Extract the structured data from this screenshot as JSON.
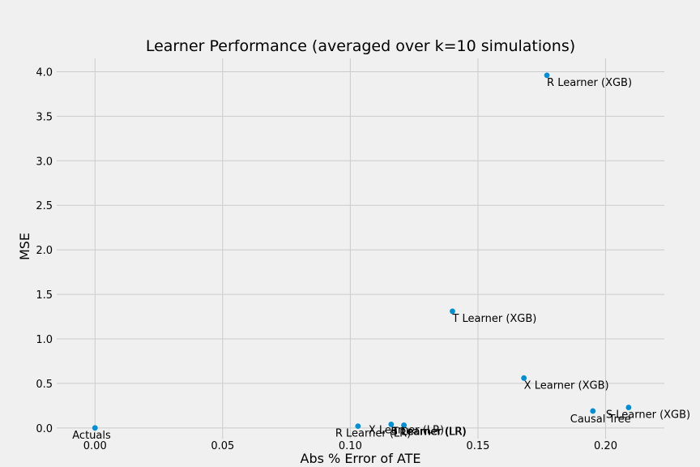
{
  "chart_data": {
    "type": "scatter",
    "title": "Learner Performance (averaged over k=10 simulations)",
    "xlabel": "Abs % Error of ATE",
    "ylabel": "MSE",
    "xlim": [
      -0.015,
      0.223
    ],
    "ylim": [
      -0.12,
      4.15
    ],
    "xticks": [
      {
        "value": 0.0,
        "label": "0.00"
      },
      {
        "value": 0.05,
        "label": "0.05"
      },
      {
        "value": 0.1,
        "label": "0.10"
      },
      {
        "value": 0.15,
        "label": "0.15"
      },
      {
        "value": 0.2,
        "label": "0.20"
      }
    ],
    "yticks": [
      {
        "value": 0.0,
        "label": "0.0"
      },
      {
        "value": 0.5,
        "label": "0.5"
      },
      {
        "value": 1.0,
        "label": "1.0"
      },
      {
        "value": 1.5,
        "label": "1.5"
      },
      {
        "value": 2.0,
        "label": "2.0"
      },
      {
        "value": 2.5,
        "label": "2.5"
      },
      {
        "value": 3.0,
        "label": "3.0"
      },
      {
        "value": 3.5,
        "label": "3.5"
      },
      {
        "value": 4.0,
        "label": "4.0"
      }
    ],
    "grid": true,
    "marker_color": "#008fd5",
    "points": [
      {
        "label": "Actuals",
        "x": 0.0,
        "y": 0.0
      },
      {
        "label": "R Learner (LR)",
        "x": 0.103,
        "y": 0.02
      },
      {
        "label": "X Learner (LR)",
        "x": 0.116,
        "y": 0.04
      },
      {
        "label": "S Learner (LR)",
        "x": 0.121,
        "y": 0.03
      },
      {
        "label": "T Learner (LR)",
        "x": 0.121,
        "y": 0.03
      },
      {
        "label": "T Learner (XGB)",
        "x": 0.14,
        "y": 1.31
      },
      {
        "label": "X Learner (XGB)",
        "x": 0.168,
        "y": 0.56
      },
      {
        "label": "R Learner (XGB)",
        "x": 0.177,
        "y": 3.96
      },
      {
        "label": "Causal Tree",
        "x": 0.195,
        "y": 0.19
      },
      {
        "label": "S Learner (XGB)",
        "x": 0.209,
        "y": 0.23
      }
    ]
  }
}
